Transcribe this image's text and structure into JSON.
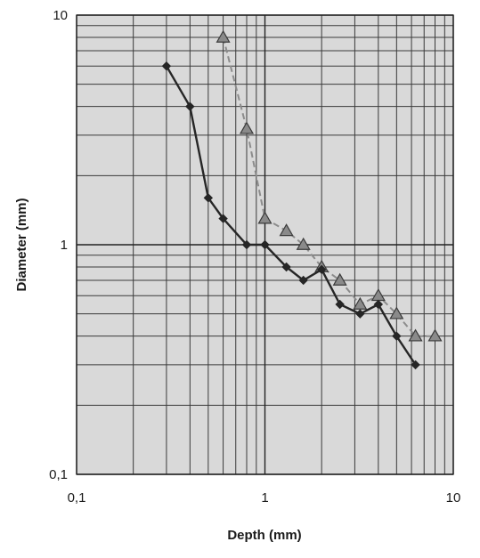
{
  "chart_data": {
    "type": "line",
    "title": "",
    "xlabel": "Depth (mm)",
    "ylabel": "Diameter (mm)",
    "x_scale": "log",
    "y_scale": "log",
    "xlim": [
      0.1,
      10
    ],
    "ylim": [
      0.1,
      10
    ],
    "x_ticks": [
      {
        "value": 0.1,
        "label": "0,1"
      },
      {
        "value": 1,
        "label": "1"
      },
      {
        "value": 10,
        "label": "10"
      }
    ],
    "y_ticks": [
      {
        "value": 10,
        "label": "10"
      },
      {
        "value": 1,
        "label": "1"
      },
      {
        "value": 0.1,
        "label": "0,1"
      }
    ],
    "grid": true,
    "legend": "none",
    "colors": {
      "plot_background": "#d9d9d9",
      "grid": "#3a3a3a",
      "series_diamond": "#262626",
      "series_triangle_line": "#8c8c8c",
      "series_triangle_marker": "#8a8a8a"
    },
    "series": [
      {
        "marker": "diamond",
        "line": "solid",
        "x": [
          0.3,
          0.4,
          0.5,
          0.6,
          0.8,
          1.0,
          1.3,
          1.6,
          2.0,
          2.5,
          3.2,
          4.0,
          5.0,
          6.3
        ],
        "y": [
          6.0,
          4.0,
          1.6,
          1.3,
          1.0,
          1.0,
          0.8,
          0.7,
          0.78,
          0.55,
          0.5,
          0.55,
          0.4,
          0.3
        ]
      },
      {
        "marker": "triangle",
        "line": "dashed",
        "x": [
          0.6,
          0.8,
          1.0,
          1.3,
          1.6,
          2.0,
          2.5,
          3.2,
          4.0,
          5.0,
          6.3,
          8.0
        ],
        "y": [
          8.0,
          3.2,
          1.3,
          1.15,
          1.0,
          0.8,
          0.7,
          0.55,
          0.6,
          0.5,
          0.4,
          0.4
        ]
      }
    ]
  }
}
